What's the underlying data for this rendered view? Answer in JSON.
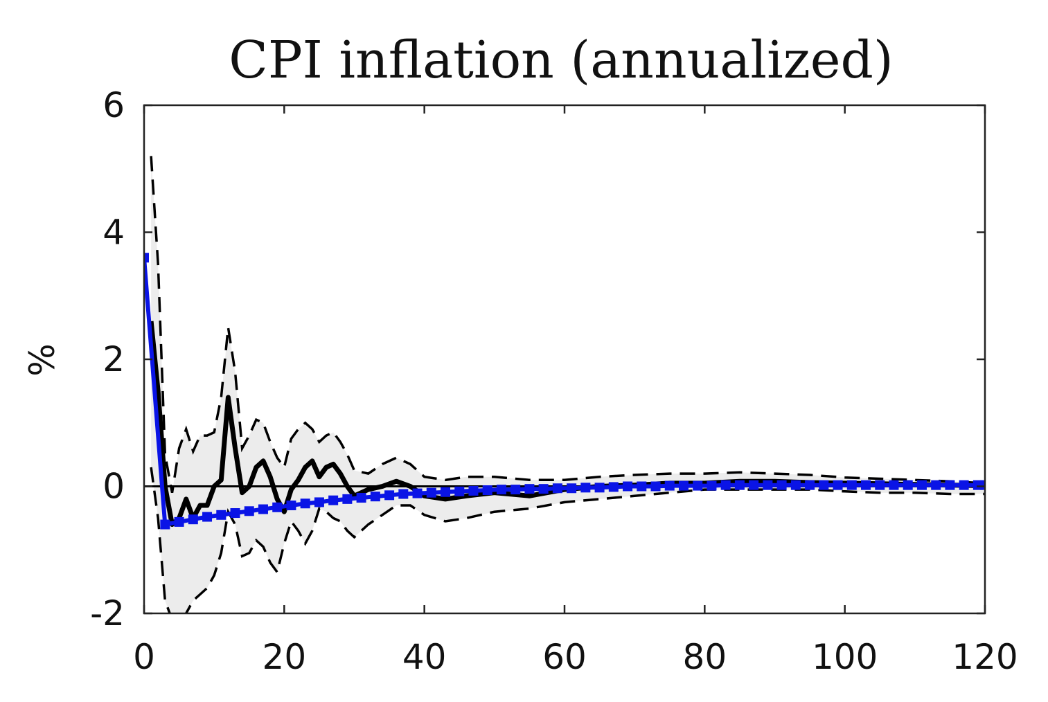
{
  "chart_data": {
    "type": "line",
    "title": "CPI inflation (annualized)",
    "xlabel": "",
    "ylabel": "%",
    "xlim": [
      0,
      120
    ],
    "ylim": [
      -2,
      6
    ],
    "xticks": [
      0,
      20,
      40,
      60,
      80,
      100,
      120
    ],
    "yticks": [
      -2,
      0,
      2,
      4,
      6
    ],
    "grid": false,
    "colors": {
      "median": "#000000",
      "bands": "#000000",
      "band_fill": "#ececec",
      "model": "#0a14e6",
      "zero": "#000000"
    },
    "band_upper": {
      "x": [
        1,
        2,
        3,
        4,
        5,
        6,
        7,
        8,
        9,
        10,
        11,
        12,
        13,
        14,
        15,
        16,
        17,
        18,
        19,
        20,
        21,
        22,
        23,
        24,
        25,
        26,
        27,
        28,
        29,
        30,
        32,
        34,
        36,
        38,
        40,
        43,
        46,
        50,
        55,
        60,
        65,
        70,
        75,
        80,
        85,
        90,
        95,
        100,
        105,
        110,
        115,
        120
      ],
      "y": [
        5.2,
        3.5,
        0.5,
        -0.1,
        0.6,
        0.9,
        0.55,
        0.8,
        0.8,
        0.85,
        1.4,
        2.5,
        1.8,
        0.6,
        0.8,
        1.05,
        1.0,
        0.7,
        0.45,
        0.3,
        0.75,
        0.9,
        1.0,
        0.9,
        0.7,
        0.8,
        0.85,
        0.7,
        0.5,
        0.25,
        0.2,
        0.35,
        0.45,
        0.35,
        0.15,
        0.1,
        0.15,
        0.15,
        0.1,
        0.1,
        0.15,
        0.18,
        0.2,
        0.2,
        0.22,
        0.2,
        0.18,
        0.14,
        0.12,
        0.1,
        0.08,
        0.05
      ]
    },
    "band_lower": {
      "x": [
        1,
        2,
        3,
        4,
        5,
        6,
        7,
        8,
        9,
        10,
        11,
        12,
        13,
        14,
        15,
        16,
        17,
        18,
        19,
        20,
        21,
        22,
        23,
        24,
        25,
        26,
        27,
        28,
        29,
        30,
        32,
        34,
        36,
        38,
        40,
        43,
        46,
        50,
        55,
        60,
        65,
        70,
        75,
        80,
        85,
        90,
        95,
        100,
        105,
        110,
        115,
        120
      ],
      "y": [
        0.3,
        -0.5,
        -1.8,
        -2.1,
        -2.1,
        -2.0,
        -1.8,
        -1.7,
        -1.6,
        -1.4,
        -1.05,
        -0.4,
        -0.6,
        -1.1,
        -1.05,
        -0.85,
        -0.95,
        -1.2,
        -1.35,
        -0.9,
        -0.55,
        -0.7,
        -0.9,
        -0.7,
        -0.35,
        -0.4,
        -0.5,
        -0.55,
        -0.7,
        -0.8,
        -0.6,
        -0.45,
        -0.3,
        -0.3,
        -0.45,
        -0.55,
        -0.5,
        -0.4,
        -0.35,
        -0.25,
        -0.2,
        -0.15,
        -0.1,
        -0.05,
        -0.05,
        -0.05,
        -0.05,
        -0.08,
        -0.1,
        -0.1,
        -0.12,
        -0.12
      ]
    },
    "series": [
      {
        "role": "median",
        "x": [
          1,
          2,
          3,
          4,
          5,
          6,
          7,
          8,
          9,
          10,
          11,
          12,
          13,
          14,
          15,
          16,
          17,
          18,
          19,
          20,
          21,
          22,
          23,
          24,
          25,
          26,
          27,
          28,
          29,
          30,
          32,
          34,
          36,
          38,
          40,
          43,
          46,
          50,
          55,
          60,
          65,
          70,
          75,
          80,
          85,
          90,
          95,
          100,
          105,
          110,
          115,
          120
        ],
        "values": [
          2.6,
          1.5,
          0.0,
          -0.6,
          -0.5,
          -0.2,
          -0.5,
          -0.3,
          -0.3,
          0.0,
          0.1,
          1.4,
          0.6,
          -0.1,
          0.0,
          0.3,
          0.4,
          0.15,
          -0.2,
          -0.4,
          -0.05,
          0.1,
          0.3,
          0.4,
          0.15,
          0.3,
          0.35,
          0.2,
          0.0,
          -0.15,
          -0.05,
          0.0,
          0.08,
          0.0,
          -0.15,
          -0.2,
          -0.15,
          -0.1,
          -0.15,
          -0.05,
          0.0,
          0.02,
          0.05,
          0.05,
          0.08,
          0.08,
          0.06,
          0.05,
          0.04,
          0.03,
          0.02,
          0.01
        ]
      },
      {
        "role": "model",
        "x": [
          0,
          3,
          5,
          7,
          9,
          11,
          13,
          15,
          17,
          19,
          21,
          23,
          25,
          27,
          29,
          31,
          33,
          35,
          37,
          39,
          41,
          43,
          45,
          47,
          49,
          51,
          53,
          55,
          57,
          59,
          61,
          63,
          65,
          67,
          69,
          71,
          73,
          75,
          77,
          79,
          81,
          83,
          85,
          87,
          89,
          91,
          93,
          95,
          97,
          99,
          101,
          103,
          105,
          107,
          109,
          111,
          113,
          115,
          117,
          119,
          120
        ],
        "values": [
          3.6,
          -0.6,
          -0.56,
          -0.52,
          -0.48,
          -0.45,
          -0.42,
          -0.39,
          -0.36,
          -0.33,
          -0.3,
          -0.27,
          -0.25,
          -0.22,
          -0.2,
          -0.18,
          -0.16,
          -0.14,
          -0.12,
          -0.11,
          -0.1,
          -0.09,
          -0.08,
          -0.07,
          -0.06,
          -0.05,
          -0.05,
          -0.04,
          -0.04,
          -0.03,
          -0.03,
          -0.02,
          -0.02,
          -0.01,
          0.0,
          0.0,
          0.0,
          0.01,
          0.01,
          0.01,
          0.01,
          0.02,
          0.02,
          0.02,
          0.02,
          0.02,
          0.02,
          0.02,
          0.02,
          0.02,
          0.02,
          0.02,
          0.02,
          0.02,
          0.02,
          0.02,
          0.02,
          0.02,
          0.02,
          0.02,
          0.02
        ]
      }
    ]
  }
}
